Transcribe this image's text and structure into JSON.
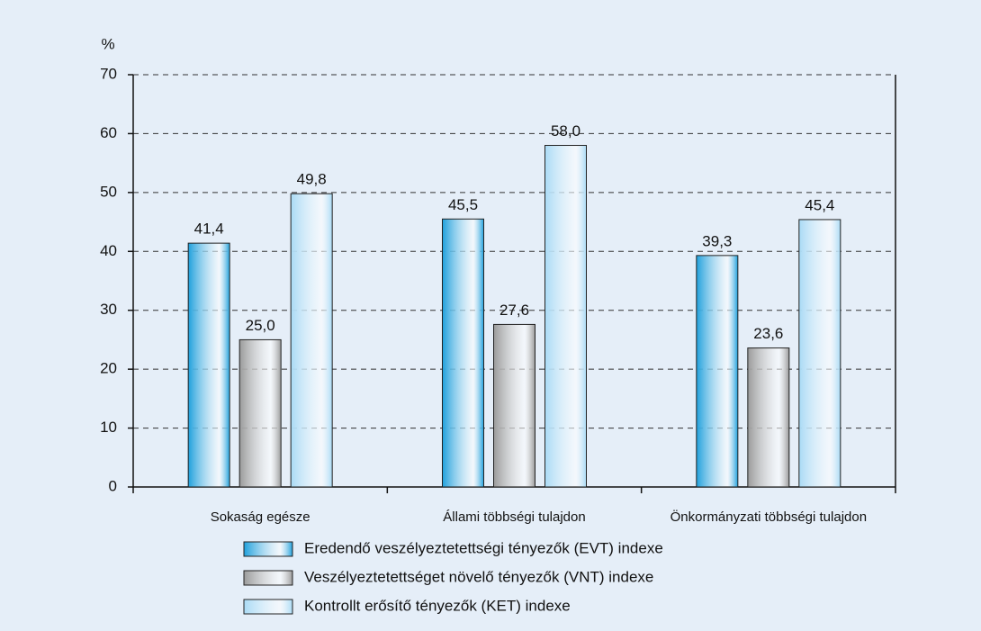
{
  "chart_data": {
    "type": "bar",
    "y_label": "%",
    "categories": [
      "Sokaság egésze",
      "Állami többségi tulajdon",
      "Önkormányzati többségi tulajdon"
    ],
    "series": [
      {
        "name": "Eredendő veszélyeztetettségi tényezők (EVT) indexe",
        "color": "#1fa0dc",
        "values": [
          41.4,
          45.5,
          39.3
        ],
        "value_labels": [
          "41,4",
          "45,5",
          "39,3"
        ]
      },
      {
        "name": "Veszélyeztetettséget növelő tényezők (VNT) indexe",
        "color": "#9a9a9a",
        "values": [
          25.0,
          27.6,
          23.6
        ],
        "value_labels": [
          "25,0",
          "27,6",
          "23,6"
        ]
      },
      {
        "name": "Kontrollt erősítő tényezők (KET) indexe",
        "color": "#a9daf5",
        "values": [
          49.8,
          58.0,
          45.4
        ],
        "value_labels": [
          "49,8",
          "58,0",
          "45,4"
        ]
      }
    ],
    "ylim": [
      0,
      70
    ],
    "yticks": [
      0,
      10,
      20,
      30,
      40,
      50,
      60,
      70
    ],
    "grid": true
  }
}
